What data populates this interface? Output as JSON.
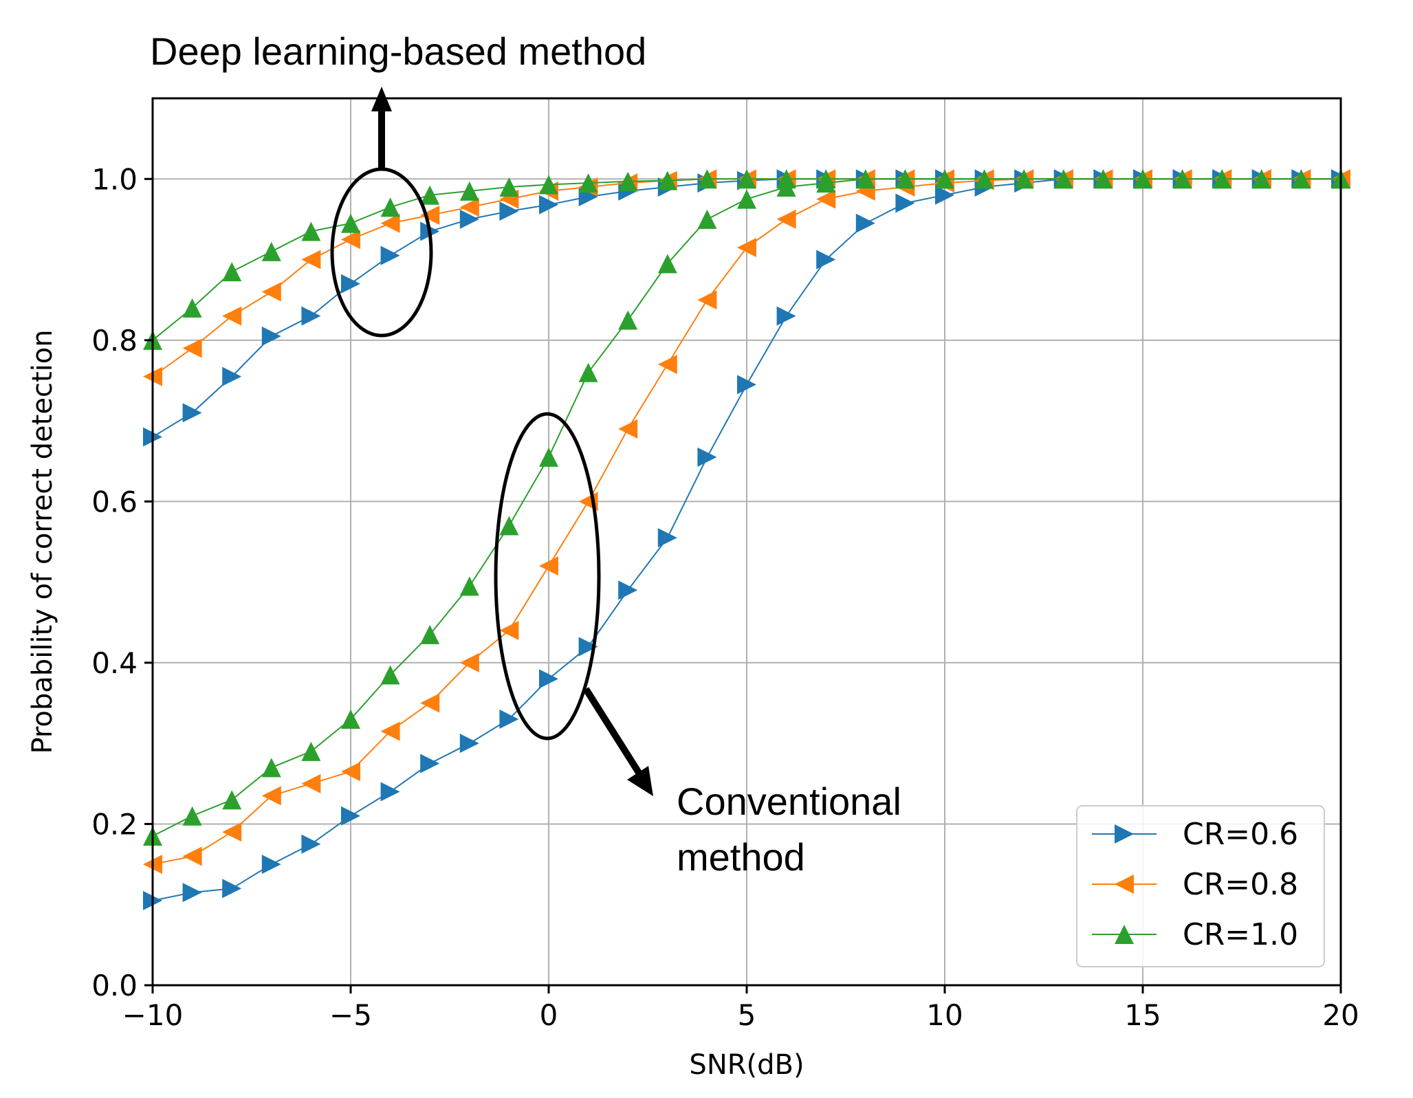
{
  "chart_data": {
    "type": "line",
    "title": "",
    "xlabel": "SNR(dB)",
    "ylabel": "Probability of correct detection",
    "xlim": [
      -10,
      20
    ],
    "ylim": [
      0.0,
      1.1
    ],
    "xticks": [
      -10,
      -5,
      0,
      5,
      10,
      15,
      20
    ],
    "xtick_labels": [
      "−10",
      "−5",
      "0",
      "5",
      "10",
      "15",
      "20"
    ],
    "yticks": [
      0.0,
      0.2,
      0.4,
      0.6,
      0.8,
      1.0
    ],
    "ytick_labels": [
      "0.0",
      "0.2",
      "0.4",
      "0.6",
      "0.8",
      "1.0"
    ],
    "grid": true,
    "legend_position": "bottom-right",
    "x": [
      -10,
      -9,
      -8,
      -7,
      -6,
      -5,
      -4,
      -3,
      -2,
      -1,
      0,
      1,
      2,
      3,
      4,
      5,
      6,
      7,
      8,
      9,
      10,
      11,
      12,
      13,
      14,
      15,
      16,
      17,
      18,
      19,
      20
    ],
    "series": [
      {
        "name": "CR=0.6",
        "method": "Deep learning-based method",
        "color": "#1f77b4",
        "marker": "triangle-right",
        "legend": true,
        "values": [
          0.68,
          0.71,
          0.755,
          0.805,
          0.83,
          0.87,
          0.905,
          0.935,
          0.95,
          0.96,
          0.968,
          0.978,
          0.985,
          0.99,
          0.995,
          0.998,
          1.0,
          1.0,
          1.0,
          1.0,
          1.0,
          1.0,
          1.0,
          1.0,
          1.0,
          1.0,
          1.0,
          1.0,
          1.0,
          1.0,
          1.0
        ]
      },
      {
        "name": "CR=0.8",
        "method": "Deep learning-based method",
        "color": "#ff7f0e",
        "marker": "triangle-left",
        "legend": true,
        "values": [
          0.755,
          0.79,
          0.83,
          0.86,
          0.9,
          0.925,
          0.945,
          0.955,
          0.965,
          0.975,
          0.985,
          0.99,
          0.995,
          0.998,
          1.0,
          1.0,
          1.0,
          1.0,
          1.0,
          1.0,
          1.0,
          1.0,
          1.0,
          1.0,
          1.0,
          1.0,
          1.0,
          1.0,
          1.0,
          1.0,
          1.0
        ]
      },
      {
        "name": "CR=1.0",
        "method": "Deep learning-based method",
        "color": "#2ca02c",
        "marker": "triangle-up",
        "legend": true,
        "values": [
          0.8,
          0.84,
          0.885,
          0.91,
          0.935,
          0.945,
          0.965,
          0.98,
          0.985,
          0.99,
          0.993,
          0.995,
          0.997,
          0.998,
          1.0,
          1.0,
          1.0,
          1.0,
          1.0,
          1.0,
          1.0,
          1.0,
          1.0,
          1.0,
          1.0,
          1.0,
          1.0,
          1.0,
          1.0,
          1.0,
          1.0
        ]
      },
      {
        "name": "CR=0.6",
        "method": "Conventional method",
        "color": "#1f77b4",
        "marker": "triangle-right",
        "legend": false,
        "values": [
          0.105,
          0.115,
          0.12,
          0.15,
          0.175,
          0.21,
          0.24,
          0.275,
          0.3,
          0.33,
          0.38,
          0.42,
          0.49,
          0.555,
          0.655,
          0.745,
          0.83,
          0.9,
          0.945,
          0.97,
          0.98,
          0.99,
          0.995,
          1.0,
          1.0,
          1.0,
          1.0,
          1.0,
          1.0,
          1.0,
          1.0
        ]
      },
      {
        "name": "CR=0.8",
        "method": "Conventional method",
        "color": "#ff7f0e",
        "marker": "triangle-left",
        "legend": false,
        "values": [
          0.15,
          0.16,
          0.19,
          0.235,
          0.25,
          0.265,
          0.315,
          0.35,
          0.4,
          0.44,
          0.52,
          0.6,
          0.69,
          0.77,
          0.85,
          0.915,
          0.95,
          0.975,
          0.985,
          0.99,
          0.995,
          0.998,
          1.0,
          1.0,
          1.0,
          1.0,
          1.0,
          1.0,
          1.0,
          1.0,
          1.0
        ]
      },
      {
        "name": "CR=1.0",
        "method": "Conventional method",
        "color": "#2ca02c",
        "marker": "triangle-up",
        "legend": false,
        "values": [
          0.185,
          0.21,
          0.23,
          0.27,
          0.29,
          0.33,
          0.385,
          0.435,
          0.495,
          0.57,
          0.655,
          0.76,
          0.825,
          0.895,
          0.95,
          0.975,
          0.99,
          0.995,
          1.0,
          1.0,
          1.0,
          1.0,
          1.0,
          1.0,
          1.0,
          1.0,
          1.0,
          1.0,
          1.0,
          1.0,
          1.0
        ]
      }
    ],
    "annotations": [
      {
        "text": "Deep learning-based method",
        "target_x": -4.2,
        "target_y": 0.9
      },
      {
        "line1": "Conventional",
        "line2": "method",
        "target_x": 0,
        "target_y": 0.5
      }
    ]
  }
}
